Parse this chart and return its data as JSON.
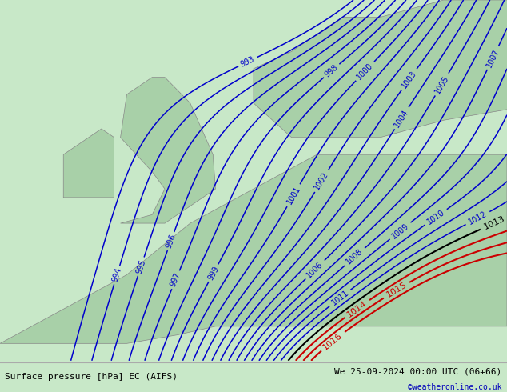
{
  "title_left": "Surface pressure [hPa] EC (AIFS)",
  "title_right": "We 25-09-2024 00:00 UTC (06+66)",
  "credit": "©weatheronline.co.uk",
  "bg_color": "#c8e8c8",
  "land_color": "#a8d0a8",
  "sea_color": "#c8dce8",
  "contour_color_blue": "#0000cc",
  "contour_color_black": "#000000",
  "contour_color_red": "#cc0000",
  "label_fontsize": 7,
  "footer_fontsize": 8,
  "credit_fontsize": 7,
  "pressure_min": 993,
  "pressure_max": 1016,
  "pressure_step": 1
}
